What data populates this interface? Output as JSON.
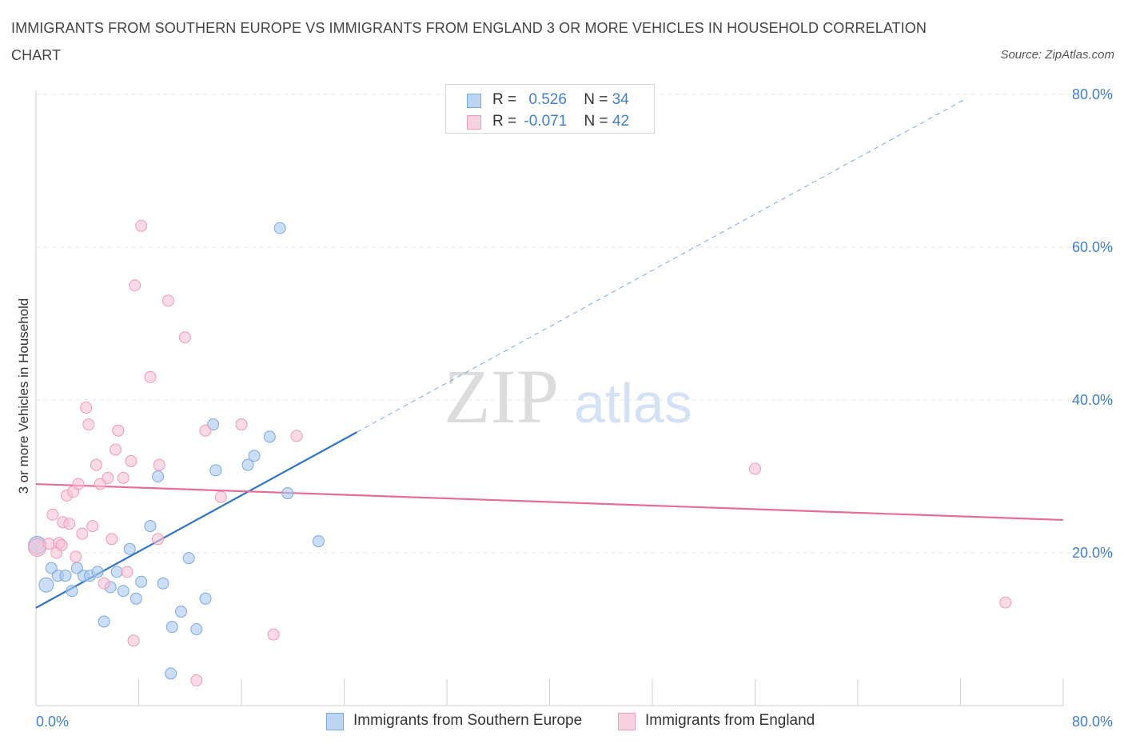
{
  "chart_data": {
    "type": "scatter",
    "title": "IMMIGRANTS FROM SOUTHERN EUROPE VS IMMIGRANTS FROM ENGLAND 3 OR MORE VEHICLES IN HOUSEHOLD CORRELATION CHART",
    "source": "Source: ZipAtlas.com",
    "ylabel": "3 or more Vehicles in Household",
    "xlabel": "",
    "xlim": [
      0,
      80
    ],
    "ylim": [
      0,
      80
    ],
    "x_tick_labels": [
      "0.0%",
      "80.0%"
    ],
    "y_tick_labels": [
      {
        "value": 80,
        "label": "80.0%"
      },
      {
        "value": 60,
        "label": "60.0%"
      },
      {
        "value": 40,
        "label": "40.0%"
      },
      {
        "value": 20,
        "label": "20.0%"
      }
    ],
    "watermark": {
      "zip": "ZIP",
      "atlas": "atlas"
    },
    "legend": {
      "rows": [
        {
          "r_label": "R =",
          "r_value": "0.526",
          "n_label": "N =",
          "n_value": "34"
        },
        {
          "r_label": "R =",
          "r_value": "-0.071",
          "n_label": "N =",
          "n_value": "42"
        }
      ]
    },
    "series": [
      {
        "name": "Immigrants from Southern Europe",
        "color": "#a9c8f0",
        "edge": "#7aa8e0",
        "line_color": "#2f74c9",
        "trend": {
          "x0": 0,
          "y0": 12.8,
          "x1": 25,
          "y1": 35.8,
          "dashed_to_x": 72.5
        },
        "points": [
          [
            0.1,
            21.0,
            22
          ],
          [
            0.8,
            15.8,
            18
          ],
          [
            1.2,
            18.0,
            14
          ],
          [
            1.7,
            17.0,
            14
          ],
          [
            2.3,
            17.0,
            14
          ],
          [
            2.8,
            15.0,
            14
          ],
          [
            3.2,
            18.0,
            14
          ],
          [
            3.7,
            17.0,
            14
          ],
          [
            4.2,
            17.0,
            14
          ],
          [
            4.8,
            17.5,
            14
          ],
          [
            5.3,
            11.0,
            14
          ],
          [
            5.8,
            15.5,
            14
          ],
          [
            6.3,
            17.5,
            14
          ],
          [
            6.8,
            15.0,
            14
          ],
          [
            7.3,
            20.5,
            14
          ],
          [
            7.8,
            14.0,
            14
          ],
          [
            8.2,
            16.2,
            14
          ],
          [
            8.9,
            23.5,
            14
          ],
          [
            9.5,
            30.0,
            14
          ],
          [
            9.9,
            16.0,
            14
          ],
          [
            10.6,
            10.3,
            14
          ],
          [
            11.3,
            12.3,
            14
          ],
          [
            11.9,
            19.3,
            14
          ],
          [
            12.5,
            10.0,
            14
          ],
          [
            13.2,
            14.0,
            14
          ],
          [
            13.8,
            36.8,
            14
          ],
          [
            14.0,
            30.8,
            14
          ],
          [
            16.5,
            31.5,
            14
          ],
          [
            17.0,
            32.7,
            14
          ],
          [
            18.2,
            35.2,
            14
          ],
          [
            19.0,
            62.5,
            14
          ],
          [
            19.6,
            27.8,
            14
          ],
          [
            22.0,
            21.5,
            14
          ],
          [
            10.5,
            4.2,
            14
          ]
        ]
      },
      {
        "name": "Immigrants from England",
        "color": "#f6c2d3",
        "edge": "#ef9ab7",
        "line_color": "#e76c96",
        "trend": {
          "x0": 0,
          "y0": 29.0,
          "x1": 80,
          "y1": 24.3
        },
        "points": [
          [
            0.1,
            20.7,
            22
          ],
          [
            1.0,
            21.2,
            14
          ],
          [
            1.3,
            25.0,
            14
          ],
          [
            1.6,
            20.0,
            14
          ],
          [
            1.8,
            21.3,
            14
          ],
          [
            2.1,
            24.0,
            14
          ],
          [
            2.4,
            27.5,
            14
          ],
          [
            2.6,
            23.8,
            14
          ],
          [
            2.9,
            28.0,
            14
          ],
          [
            3.1,
            19.5,
            14
          ],
          [
            3.3,
            29.0,
            14
          ],
          [
            3.6,
            22.5,
            14
          ],
          [
            3.9,
            39.0,
            14
          ],
          [
            4.1,
            36.8,
            14
          ],
          [
            4.4,
            23.5,
            14
          ],
          [
            4.7,
            31.5,
            14
          ],
          [
            5.0,
            29.0,
            14
          ],
          [
            5.3,
            16.0,
            14
          ],
          [
            5.6,
            29.8,
            14
          ],
          [
            5.9,
            21.8,
            14
          ],
          [
            6.2,
            33.5,
            14
          ],
          [
            6.4,
            36.0,
            14
          ],
          [
            6.8,
            29.8,
            14
          ],
          [
            7.1,
            17.5,
            14
          ],
          [
            7.4,
            32.0,
            14
          ],
          [
            7.7,
            55.0,
            14
          ],
          [
            7.6,
            8.5,
            14
          ],
          [
            8.2,
            62.8,
            14
          ],
          [
            8.9,
            43.0,
            14
          ],
          [
            9.5,
            21.8,
            14
          ],
          [
            9.6,
            31.5,
            14
          ],
          [
            10.3,
            53.0,
            14
          ],
          [
            11.6,
            48.2,
            14
          ],
          [
            12.5,
            3.3,
            14
          ],
          [
            13.2,
            36.0,
            14
          ],
          [
            14.4,
            27.3,
            14
          ],
          [
            16.0,
            36.8,
            14
          ],
          [
            18.5,
            9.3,
            14
          ],
          [
            20.3,
            35.3,
            14
          ],
          [
            56.0,
            31.0,
            14
          ],
          [
            75.5,
            13.5,
            14
          ],
          [
            2.0,
            21.0,
            14
          ]
        ]
      }
    ]
  }
}
